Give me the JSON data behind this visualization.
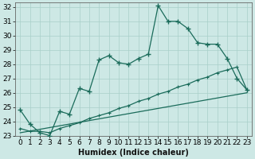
{
  "xlabel": "Humidex (Indice chaleur)",
  "background_color": "#cde8e5",
  "grid_color": "#a8cfc9",
  "line_color": "#1a6b5a",
  "xlim": [
    -0.5,
    23.5
  ],
  "ylim": [
    23,
    32.3
  ],
  "xticks": [
    0,
    1,
    2,
    3,
    4,
    5,
    6,
    7,
    8,
    9,
    10,
    11,
    12,
    13,
    14,
    15,
    16,
    17,
    18,
    19,
    20,
    21,
    22,
    23
  ],
  "yticks": [
    23,
    24,
    25,
    26,
    27,
    28,
    29,
    30,
    31,
    32
  ],
  "curve1_x": [
    0,
    1,
    2,
    3,
    4,
    5,
    6,
    7,
    8,
    9,
    10,
    11,
    12,
    13,
    14,
    15,
    16,
    17,
    18,
    19,
    20,
    21,
    22,
    23
  ],
  "curve1_y": [
    24.8,
    23.8,
    23.2,
    23.0,
    24.7,
    24.5,
    26.3,
    26.1,
    28.3,
    28.6,
    28.1,
    28.0,
    28.4,
    28.7,
    32.1,
    31.0,
    31.0,
    30.5,
    29.5,
    29.4,
    29.4,
    28.4,
    27.0,
    26.2
  ],
  "curve2_x": [
    0,
    1,
    2,
    3,
    4,
    5,
    6,
    7,
    8,
    9,
    10,
    11,
    12,
    13,
    14,
    15,
    16,
    17,
    18,
    19,
    20,
    21,
    22,
    23
  ],
  "curve2_y": [
    23.5,
    23.3,
    23.3,
    23.2,
    23.5,
    23.7,
    23.9,
    24.2,
    24.4,
    24.6,
    24.9,
    25.1,
    25.4,
    25.6,
    25.9,
    26.1,
    26.4,
    26.6,
    26.9,
    27.1,
    27.4,
    27.6,
    27.8,
    26.2
  ],
  "curve3_x": [
    0,
    23
  ],
  "curve3_y": [
    23.2,
    26.0
  ],
  "fontsize_label": 7,
  "fontsize_tick": 6.5
}
